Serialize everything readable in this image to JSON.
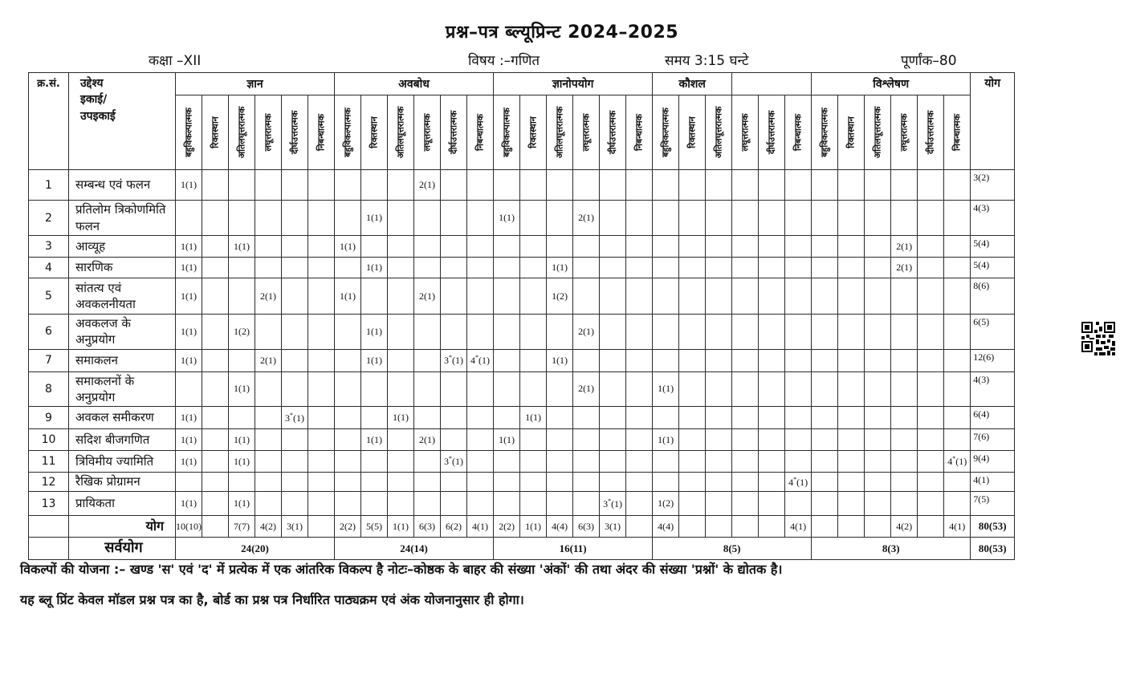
{
  "title": "प्रश्न–पत्र ब्ल्यूप्रिन्ट 2024–2025",
  "info": {
    "class": "कक्षा –XII",
    "subject": "विषय :–गणित",
    "time": "समय 3:15 घन्टे",
    "marks": "पूर्णांक–80"
  },
  "table": {
    "corner_serial": "क्र.सं.",
    "corner_unit": "उद्देश्य\nइकाई/\nउपइकाई",
    "total_header": "योग",
    "groups": [
      {
        "label": "ज्ञान",
        "span": 6
      },
      {
        "label": "अवबोध",
        "span": 6
      },
      {
        "label": "ज्ञानोपयोग",
        "span": 6
      },
      {
        "label": "कौशल",
        "span": 3
      },
      {
        "label": "",
        "span": 3
      },
      {
        "label": "विश्लेषण",
        "span": 6
      }
    ],
    "sub_headers": [
      "बहुविकल्पात्मक",
      "रिक्तस्थान",
      "अतिलघूत्तरात्मक",
      "लघूत्तरात्मक",
      "दीर्घउत्तरात्मक",
      "निबन्धात्मक"
    ],
    "rows": [
      {
        "sn": "1",
        "name": "सम्बन्ध एवं फलन",
        "cells": {
          "0": "1(1)",
          "9": "2(1)"
        },
        "total": "3(2)"
      },
      {
        "sn": "2",
        "name": "प्रतिलोम त्रिकोणमिति फलन",
        "cells": {
          "7": "1(1)",
          "12": "1(1)",
          "15": "2(1)"
        },
        "total": "4(3)"
      },
      {
        "sn": "3",
        "name": "आव्यूह",
        "cells": {
          "0": "1(1)",
          "2": "1(1)",
          "6": "1(1)",
          "27": "2(1)"
        },
        "total": "5(4)"
      },
      {
        "sn": "4",
        "name": "सारणिक",
        "cells": {
          "0": "1(1)",
          "7": "1(1)",
          "14": "1(1)",
          "27": "2(1)"
        },
        "total": "5(4)"
      },
      {
        "sn": "5",
        "name": "सांतत्य एवं अवकलनीयता",
        "cells": {
          "0": "1(1)",
          "3": "2(1)",
          "6": "1(1)",
          "9": "2(1)",
          "14": "1(2)"
        },
        "total": "8(6)"
      },
      {
        "sn": "6",
        "name": "अवकलज के अनुप्रयोग",
        "cells": {
          "0": "1(1)",
          "2": "1(2)",
          "7": "1(1)",
          "15": "2(1)"
        },
        "total": "6(5)"
      },
      {
        "sn": "7",
        "name": "समाकलन",
        "cells": {
          "0": "1(1)",
          "3": "2(1)",
          "7": "1(1)",
          "10": "3*(1)",
          "11": "4*(1)",
          "14": "1(1)"
        },
        "total": "12(6)"
      },
      {
        "sn": "8",
        "name": "समाकलनों के अनुप्रयोग",
        "cells": {
          "2": "1(1)",
          "15": "2(1)",
          "18": "1(1)"
        },
        "total": "4(3)"
      },
      {
        "sn": "9",
        "name": "अवकल समीकरण",
        "cells": {
          "0": "1(1)",
          "4": "3*(1)",
          "8": "1(1)",
          "13": "1(1)"
        },
        "total": "6(4)"
      },
      {
        "sn": "10",
        "name": "सदिश बीजगणित",
        "cells": {
          "0": "1(1)",
          "2": "1(1)",
          "7": "1(1)",
          "9": "2(1)",
          "12": "1(1)",
          "18": "1(1)"
        },
        "total": "7(6)"
      },
      {
        "sn": "11",
        "name": "त्रिविमीय ज्यामिति",
        "cells": {
          "0": "1(1)",
          "2": "1(1)",
          "10": "3*(1)",
          "29": "4*(1)"
        },
        "total": "9(4)"
      },
      {
        "sn": "12",
        "name": "रैखिक प्रोग्रामन",
        "cells": {
          "23": "4*(1)"
        },
        "total": "4(1)"
      },
      {
        "sn": "13",
        "name": "प्रायिकता",
        "cells": {
          "0": "1(1)",
          "2": "1(1)",
          "16": "3*(1)",
          "18": "1(2)"
        },
        "total": "7(5)"
      }
    ],
    "totals_row": {
      "label": "योग",
      "cells": {
        "0": "10(10)",
        "2": "7(7)",
        "3": "4(2)",
        "4": "3(1)",
        "6": "2(2)",
        "7": "5(5)",
        "8": "1(1)",
        "9": "6(3)",
        "10": "6(2)",
        "11": "4(1)",
        "12": "2(2)",
        "13": "1(1)",
        "14": "4(4)",
        "15": "6(3)",
        "16": "3(1)",
        "18": "4(4)",
        "23": "4(1)",
        "27": "4(2)",
        "29": "4(1)"
      },
      "total": "80(53)"
    },
    "grand_row": {
      "label": "सर्वयोग",
      "values": [
        "24(20)",
        "24(14)",
        "16(11)",
        "8(5)",
        "8(3)"
      ],
      "total": "80(53)"
    }
  },
  "notes": [
    "विकल्पों की योजना :– खण्ड 'स' एवं 'द' में प्रत्येक में एक आंतरिक विकल्प है नोटः–कोष्ठक के बाहर की संख्या 'अंकों' की तथा अंदर की संख्या 'प्रश्नों' के द्योतक है।",
    "यह ब्लू प्रिंट केवल मॉडल प्रश्न पत्र का है, बोर्ड का प्रश्न पत्र निर्धारित पाठ्यक्रम एवं अंक योजनानुसार ही होगा।"
  ]
}
